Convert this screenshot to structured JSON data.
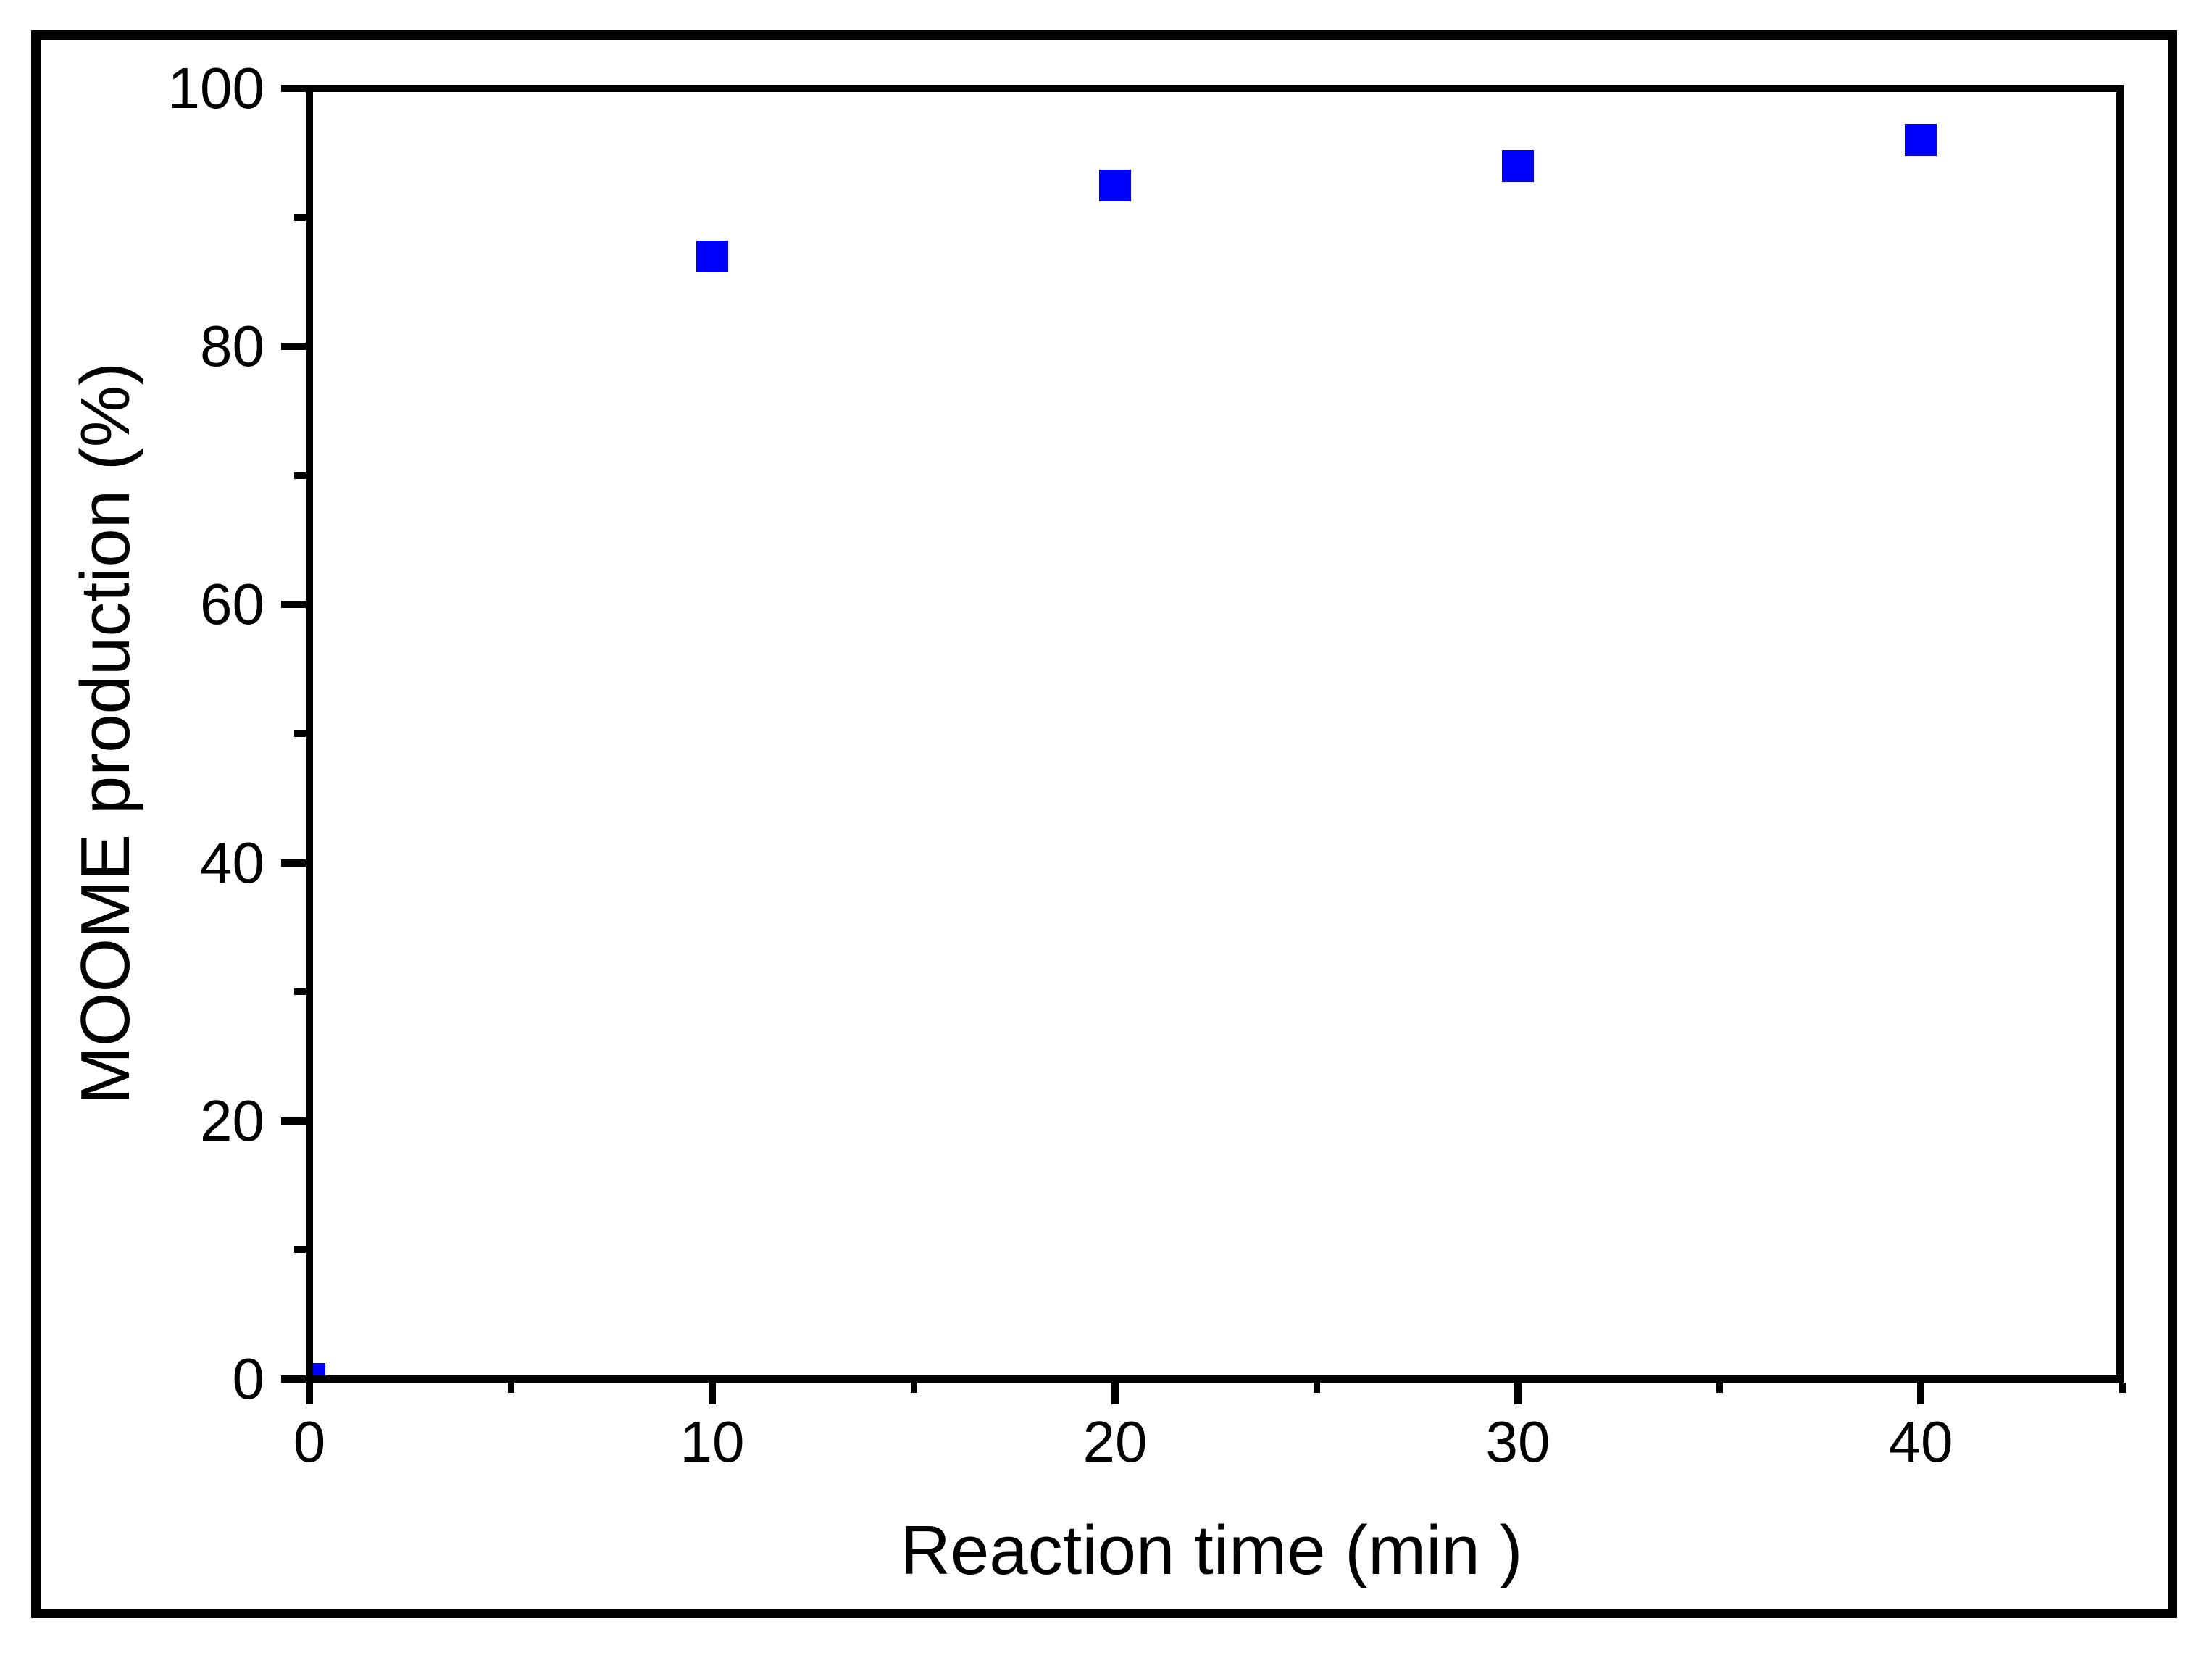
{
  "chart_data": {
    "type": "scatter",
    "title": "",
    "xlabel": "Reaction time (min )",
    "ylabel": "MOOME production (%)",
    "x": [
      0,
      10,
      20,
      30,
      40
    ],
    "y": [
      0,
      87,
      92.5,
      94,
      96
    ],
    "series": [
      {
        "name": "MOOME production",
        "marker": "filled-square",
        "color": "#0000ff",
        "points": [
          [
            0,
            0
          ],
          [
            10,
            87
          ],
          [
            20,
            92.5
          ],
          [
            30,
            94
          ],
          [
            40,
            96
          ]
        ]
      }
    ],
    "xlim": [
      0,
      45
    ],
    "ylim": [
      0,
      100
    ],
    "x_major_ticks": [
      0,
      10,
      20,
      30,
      40
    ],
    "x_minor_ticks": [
      5,
      15,
      25,
      35,
      45
    ],
    "y_major_ticks": [
      0,
      20,
      40,
      60,
      80,
      100
    ],
    "y_minor_ticks": [
      10,
      30,
      50,
      70,
      90
    ],
    "x_tick_labels": [
      "0",
      "10",
      "20",
      "30",
      "40"
    ],
    "y_tick_labels": [
      "0",
      "20",
      "40",
      "60",
      "80",
      "100"
    ],
    "grid": false,
    "legend": "none",
    "tick_direction": "out",
    "axis_color": "#000000",
    "marker_color": "#0000ff",
    "background_color": "#ffffff",
    "frame_color": "#000000"
  }
}
